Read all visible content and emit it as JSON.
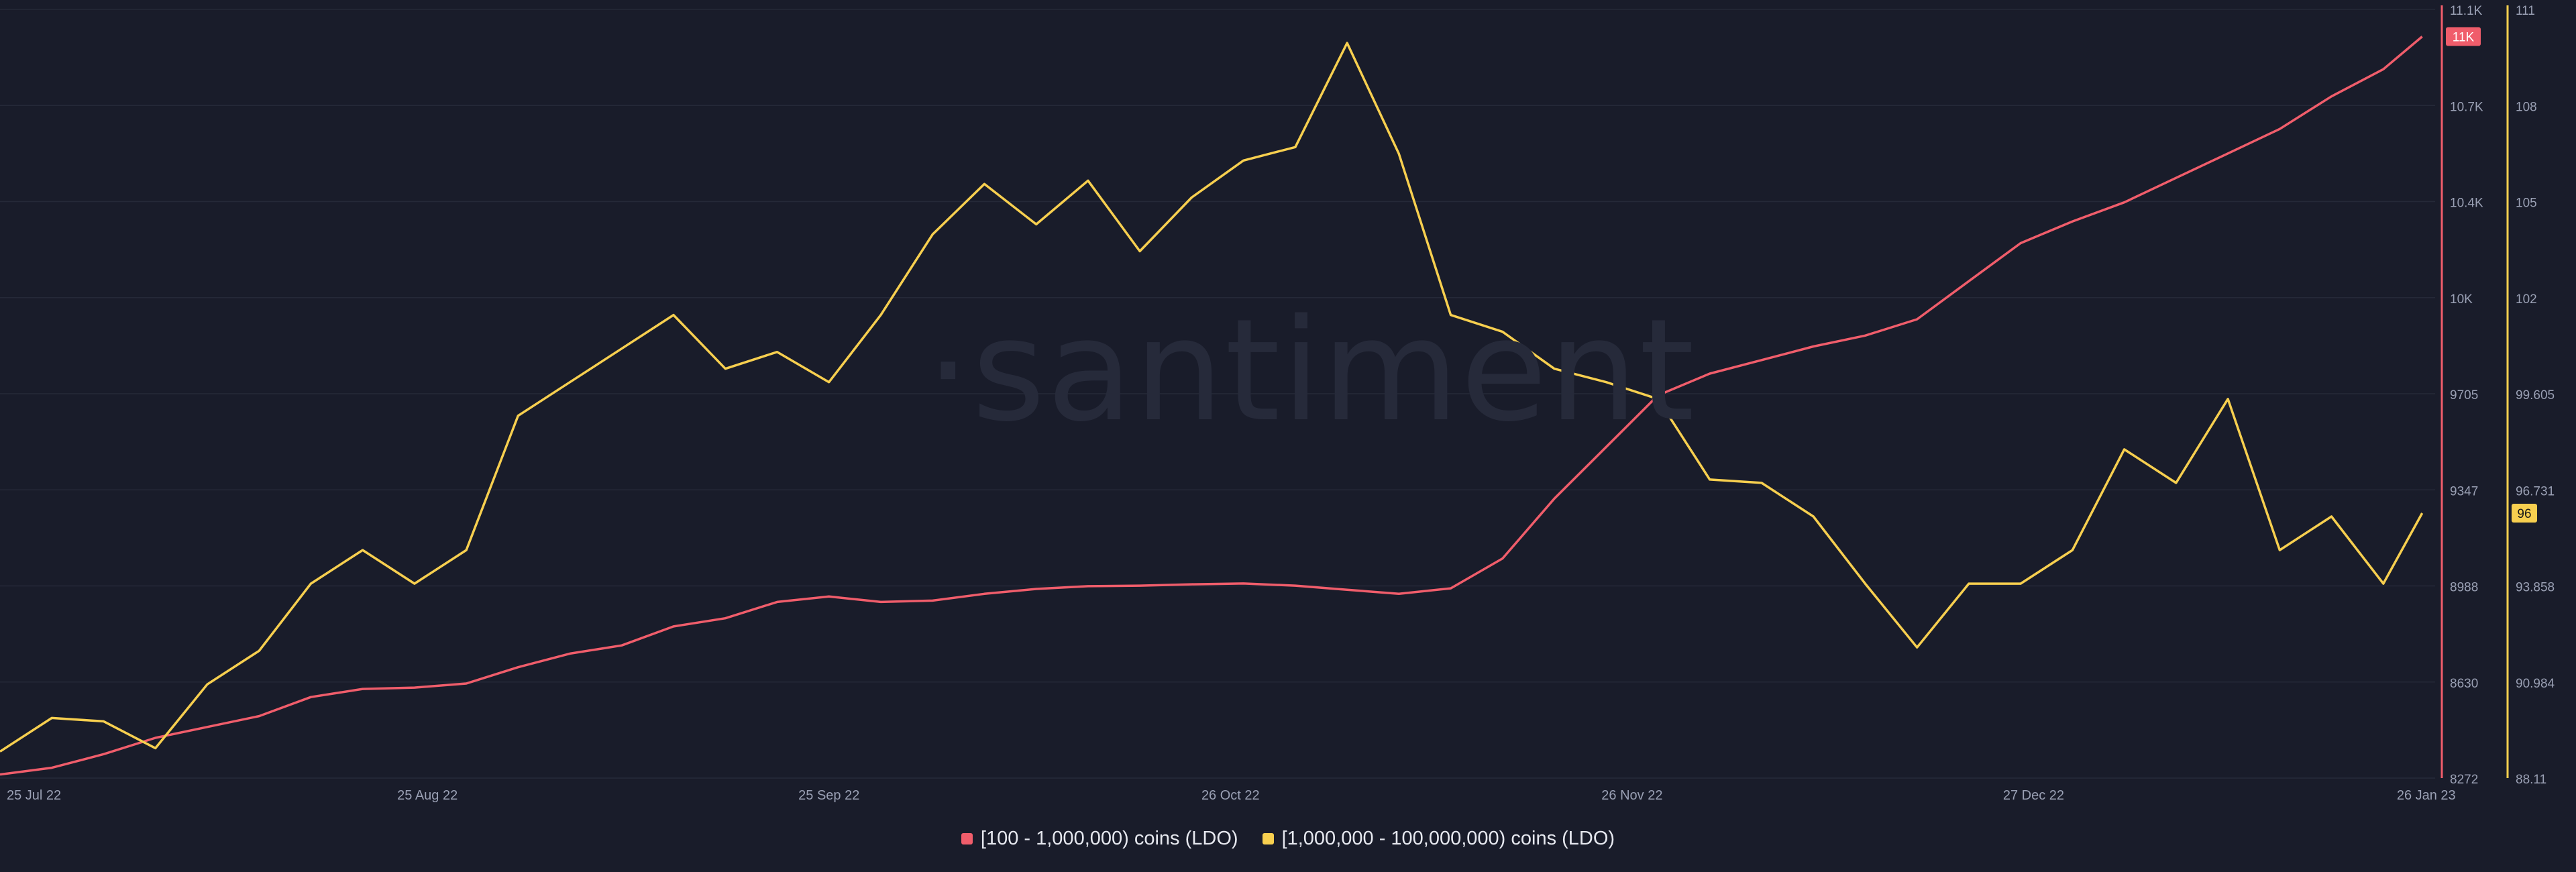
{
  "watermark": "·santiment",
  "colors": {
    "background": "#191c2a",
    "grid": "#252938",
    "axis_text": "#9aa0b4",
    "series_red": "#f05d6b",
    "series_yellow": "#f7cf4f"
  },
  "legend": [
    {
      "label": "[100 - 1,000,000) coins (LDO)",
      "color": "#f05d6b"
    },
    {
      "label": "[1,000,000 - 100,000,000) coins (LDO)",
      "color": "#f7cf4f"
    }
  ],
  "chart_data": {
    "type": "line",
    "title": "",
    "x_tick_labels": [
      "25 Jul 22",
      "25 Aug 22",
      "25 Sep 22",
      "26 Oct 22",
      "26 Nov 22",
      "27 Dec 22",
      "26 Jan 23"
    ],
    "y_left": {
      "series": "[100 - 1,000,000) coins (LDO)",
      "range": [
        8272,
        11100
      ],
      "tick_labels": [
        "11.1K",
        "10.7K",
        "10.4K",
        "10K",
        "9705",
        "9347",
        "8988",
        "8630",
        "8272"
      ],
      "current_value_badge": "11K"
    },
    "y_right": {
      "series": "[1,000,000 - 100,000,000) coins (LDO)",
      "range": [
        88.11,
        111
      ],
      "tick_labels": [
        "111",
        "108",
        "105",
        "102",
        "99.605",
        "96.731",
        "93.858",
        "90.984",
        "88.11"
      ],
      "current_value_badge": "96"
    },
    "grid": true,
    "legend_position": "bottom-center",
    "series": [
      {
        "name": "[100 - 1,000,000) coins (LDO)",
        "axis": "left",
        "color": "#f05d6b",
        "points": [
          [
            "2022-07-23",
            8285
          ],
          [
            "2022-07-27",
            8310
          ],
          [
            "2022-07-31",
            8360
          ],
          [
            "2022-08-04",
            8420
          ],
          [
            "2022-08-08",
            8460
          ],
          [
            "2022-08-12",
            8500
          ],
          [
            "2022-08-16",
            8570
          ],
          [
            "2022-08-20",
            8600
          ],
          [
            "2022-08-24",
            8605
          ],
          [
            "2022-08-28",
            8620
          ],
          [
            "2022-09-01",
            8680
          ],
          [
            "2022-09-05",
            8730
          ],
          [
            "2022-09-09",
            8760
          ],
          [
            "2022-09-13",
            8830
          ],
          [
            "2022-09-17",
            8860
          ],
          [
            "2022-09-21",
            8920
          ],
          [
            "2022-09-25",
            8940
          ],
          [
            "2022-09-29",
            8920
          ],
          [
            "2022-10-03",
            8925
          ],
          [
            "2022-10-07",
            8950
          ],
          [
            "2022-10-11",
            8968
          ],
          [
            "2022-10-15",
            8978
          ],
          [
            "2022-10-19",
            8980
          ],
          [
            "2022-10-23",
            8985
          ],
          [
            "2022-10-27",
            8988
          ],
          [
            "2022-10-31",
            8980
          ],
          [
            "2022-11-04",
            8965
          ],
          [
            "2022-11-08",
            8950
          ],
          [
            "2022-11-12",
            8970
          ],
          [
            "2022-11-16",
            9080
          ],
          [
            "2022-11-20",
            9300
          ],
          [
            "2022-11-24",
            9490
          ],
          [
            "2022-11-28",
            9680
          ],
          [
            "2022-12-02",
            9760
          ],
          [
            "2022-12-06",
            9810
          ],
          [
            "2022-12-10",
            9860
          ],
          [
            "2022-12-14",
            9900
          ],
          [
            "2022-12-18",
            9960
          ],
          [
            "2022-12-22",
            10100
          ],
          [
            "2022-12-26",
            10240
          ],
          [
            "2022-12-30",
            10320
          ],
          [
            "2023-01-03",
            10390
          ],
          [
            "2023-01-07",
            10480
          ],
          [
            "2023-01-11",
            10570
          ],
          [
            "2023-01-15",
            10660
          ],
          [
            "2023-01-19",
            10780
          ],
          [
            "2023-01-23",
            10880
          ],
          [
            "2023-01-26",
            11000
          ]
        ]
      },
      {
        "name": "[1,000,000 - 100,000,000) coins (LDO)",
        "axis": "right",
        "color": "#f7cf4f",
        "points": [
          [
            "2022-07-23",
            88.9
          ],
          [
            "2022-07-27",
            89.9
          ],
          [
            "2022-07-31",
            89.8
          ],
          [
            "2022-08-04",
            89.0
          ],
          [
            "2022-08-08",
            90.9
          ],
          [
            "2022-08-12",
            91.9
          ],
          [
            "2022-08-16",
            93.9
          ],
          [
            "2022-08-20",
            94.9
          ],
          [
            "2022-08-24",
            93.9
          ],
          [
            "2022-08-28",
            94.9
          ],
          [
            "2022-09-01",
            98.9
          ],
          [
            "2022-09-05",
            99.9
          ],
          [
            "2022-09-09",
            100.9
          ],
          [
            "2022-09-13",
            101.9
          ],
          [
            "2022-09-17",
            100.3
          ],
          [
            "2022-09-21",
            100.8
          ],
          [
            "2022-09-25",
            99.9
          ],
          [
            "2022-09-29",
            101.9
          ],
          [
            "2022-10-03",
            104.3
          ],
          [
            "2022-10-07",
            105.8
          ],
          [
            "2022-10-11",
            104.6
          ],
          [
            "2022-10-15",
            105.9
          ],
          [
            "2022-10-19",
            103.8
          ],
          [
            "2022-10-23",
            105.4
          ],
          [
            "2022-10-27",
            106.5
          ],
          [
            "2022-10-31",
            106.9
          ],
          [
            "2022-11-04",
            110.0
          ],
          [
            "2022-11-08",
            106.7
          ],
          [
            "2022-11-12",
            101.9
          ],
          [
            "2022-11-16",
            101.4
          ],
          [
            "2022-11-20",
            100.3
          ],
          [
            "2022-11-24",
            99.9
          ],
          [
            "2022-11-28",
            99.4
          ],
          [
            "2022-12-02",
            97.0
          ],
          [
            "2022-12-06",
            96.9
          ],
          [
            "2022-12-10",
            95.9
          ],
          [
            "2022-12-14",
            93.9
          ],
          [
            "2022-12-18",
            92.0
          ],
          [
            "2022-12-22",
            93.9
          ],
          [
            "2022-12-26",
            93.9
          ],
          [
            "2022-12-30",
            94.9
          ],
          [
            "2023-01-03",
            97.9
          ],
          [
            "2023-01-07",
            96.9
          ],
          [
            "2023-01-11",
            99.4
          ],
          [
            "2023-01-15",
            94.9
          ],
          [
            "2023-01-19",
            95.9
          ],
          [
            "2023-01-23",
            93.9
          ],
          [
            "2023-01-26",
            96.0
          ]
        ]
      }
    ]
  }
}
